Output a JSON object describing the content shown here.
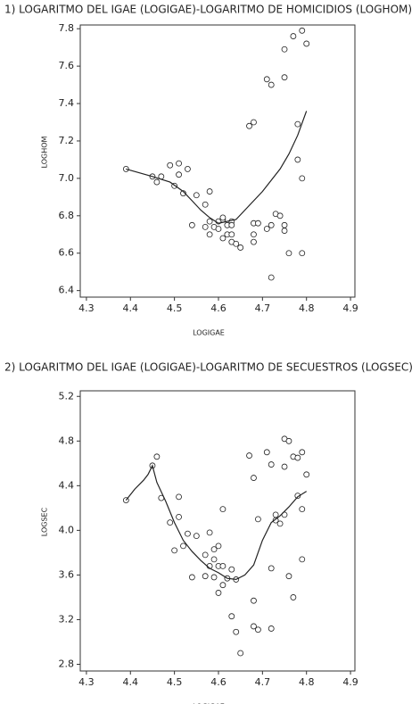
{
  "chart_data": [
    {
      "type": "scatter",
      "title": "1) LOGARITMO DEL IGAE (LOGIGAE)-LOGARITMO DE HOMICIDIOS (LOGHOM)",
      "x_label": "LOGIGAE",
      "y_label": "LOGHOM",
      "xlim": [
        4.286,
        4.91
      ],
      "ylim": [
        6.365,
        7.82
      ],
      "xticks": [
        4.3,
        4.4,
        4.5,
        4.6,
        4.7,
        4.8,
        4.9
      ],
      "yticks": [
        6.4,
        6.6,
        6.8,
        {
          "value": 7.0,
          "label": "7.0"
        },
        7.2,
        7.4,
        7.6,
        7.8
      ],
      "series": [
        {
          "style": "points",
          "color": "#222",
          "x": [
            4.39,
            4.45,
            4.46,
            4.47,
            4.49,
            4.51,
            4.51,
            4.5,
            4.53,
            4.52,
            4.55,
            4.57,
            4.58,
            4.54,
            4.57,
            4.58,
            4.58,
            4.59,
            4.6,
            4.61,
            4.6,
            4.61,
            4.61,
            4.62,
            4.63,
            4.62,
            4.63,
            4.63,
            4.63,
            4.64,
            4.65,
            4.67,
            4.68,
            4.68,
            4.69,
            4.68,
            4.68,
            4.71,
            4.72,
            4.71,
            4.72,
            4.73,
            4.74,
            4.72,
            4.75,
            4.75,
            4.75,
            4.75,
            4.77,
            4.79,
            4.8,
            4.78,
            4.78,
            4.79,
            4.79,
            4.76
          ],
          "values": [
            7.05,
            7.01,
            6.98,
            7.01,
            7.07,
            7.08,
            7.02,
            6.96,
            7.05,
            6.92,
            6.91,
            6.86,
            6.93,
            6.75,
            6.74,
            6.7,
            6.77,
            6.74,
            6.77,
            6.78,
            6.73,
            6.79,
            6.68,
            6.75,
            6.77,
            6.7,
            6.75,
            6.7,
            6.66,
            6.65,
            6.63,
            7.28,
            7.3,
            6.76,
            6.76,
            6.7,
            6.66,
            7.53,
            7.5,
            6.73,
            6.75,
            6.81,
            6.8,
            6.47,
            6.75,
            6.72,
            7.54,
            7.69,
            7.76,
            7.79,
            7.72,
            7.29,
            7.1,
            7.0,
            6.6,
            6.6
          ]
        },
        {
          "style": "line",
          "color": "#222",
          "x": [
            4.39,
            4.45,
            4.49,
            4.52,
            4.54,
            4.56,
            4.58,
            4.6,
            4.62,
            4.64,
            4.66,
            4.68,
            4.7,
            4.72,
            4.74,
            4.76,
            4.78,
            4.8
          ],
          "values": [
            7.05,
            7.01,
            6.98,
            6.93,
            6.88,
            6.83,
            6.79,
            6.76,
            6.77,
            6.78,
            6.83,
            6.88,
            6.93,
            6.99,
            7.05,
            7.13,
            7.23,
            7.36
          ]
        }
      ]
    },
    {
      "type": "scatter",
      "title": "2) LOGARITMO DEL IGAE (LOGIGAE)-LOGARITMO DE SECUESTROS (LOGSEC)",
      "x_label": "LOGIGAE",
      "y_label": "LOGSEC",
      "xlim": [
        4.286,
        4.91
      ],
      "ylim": [
        2.74,
        5.25
      ],
      "xticks": [
        4.3,
        4.4,
        4.5,
        4.6,
        4.7,
        4.8,
        4.9
      ],
      "yticks": [
        2.8,
        3.2,
        3.6,
        {
          "value": 4.0,
          "label": "4.0"
        },
        4.4,
        4.8,
        5.2
      ],
      "series": [
        {
          "style": "points",
          "color": "#222",
          "x": [
            4.39,
            4.45,
            4.46,
            4.47,
            4.49,
            4.51,
            4.51,
            4.5,
            4.52,
            4.53,
            4.55,
            4.54,
            4.57,
            4.58,
            4.58,
            4.57,
            4.59,
            4.59,
            4.59,
            4.6,
            4.6,
            4.61,
            4.6,
            4.61,
            4.61,
            4.62,
            4.63,
            4.63,
            4.64,
            4.64,
            4.65,
            4.67,
            4.68,
            4.68,
            4.68,
            4.69,
            4.69,
            4.71,
            4.72,
            4.72,
            4.72,
            4.73,
            4.73,
            4.74,
            4.75,
            4.76,
            4.75,
            4.75,
            4.76,
            4.77,
            4.77,
            4.78,
            4.79,
            4.78,
            4.79,
            4.79,
            4.8
          ],
          "values": [
            4.27,
            4.58,
            4.66,
            4.29,
            4.07,
            4.3,
            4.12,
            3.82,
            3.86,
            3.97,
            3.95,
            3.58,
            3.78,
            3.68,
            3.98,
            3.59,
            3.58,
            3.83,
            3.74,
            3.86,
            3.68,
            3.51,
            3.44,
            4.19,
            3.68,
            3.57,
            3.65,
            3.23,
            3.56,
            3.09,
            2.9,
            4.67,
            4.47,
            3.37,
            3.14,
            3.11,
            4.1,
            4.7,
            3.12,
            4.59,
            3.66,
            4.14,
            4.09,
            4.06,
            4.82,
            4.8,
            4.57,
            4.14,
            3.59,
            3.4,
            4.66,
            4.65,
            4.7,
            4.31,
            4.19,
            3.74,
            4.5
          ]
        },
        {
          "style": "line",
          "color": "#222",
          "x": [
            4.39,
            4.41,
            4.43,
            4.44,
            4.45,
            4.46,
            4.48,
            4.5,
            4.52,
            4.54,
            4.56,
            4.58,
            4.6,
            4.62,
            4.64,
            4.66,
            4.68,
            4.7,
            4.72,
            4.74,
            4.76,
            4.78,
            4.8
          ],
          "values": [
            4.27,
            4.37,
            4.45,
            4.5,
            4.58,
            4.43,
            4.26,
            4.07,
            3.91,
            3.81,
            3.73,
            3.66,
            3.62,
            3.57,
            3.56,
            3.6,
            3.69,
            3.91,
            4.07,
            4.13,
            4.21,
            4.3,
            4.35
          ]
        }
      ]
    }
  ]
}
